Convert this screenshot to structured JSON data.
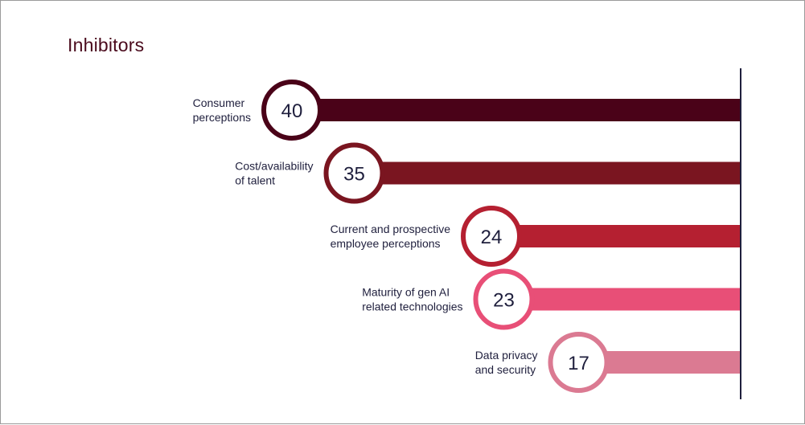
{
  "chart_data": {
    "type": "bar",
    "title": "Inhibitors",
    "orientation": "horizontal",
    "categories": [
      [
        "Consumer",
        "perceptions"
      ],
      [
        "Cost/availability",
        "of talent"
      ],
      [
        "Current and prospective",
        "employee perceptions"
      ],
      [
        "Maturity of gen AI",
        "related technologies"
      ],
      [
        "Data privacy",
        "and security"
      ]
    ],
    "values": [
      40,
      35,
      24,
      23,
      17
    ],
    "colors": [
      "#4a0218",
      "#7a1520",
      "#b52031",
      "#e84f77",
      "#db7a92"
    ],
    "axis_color": "#1f1f3d"
  }
}
